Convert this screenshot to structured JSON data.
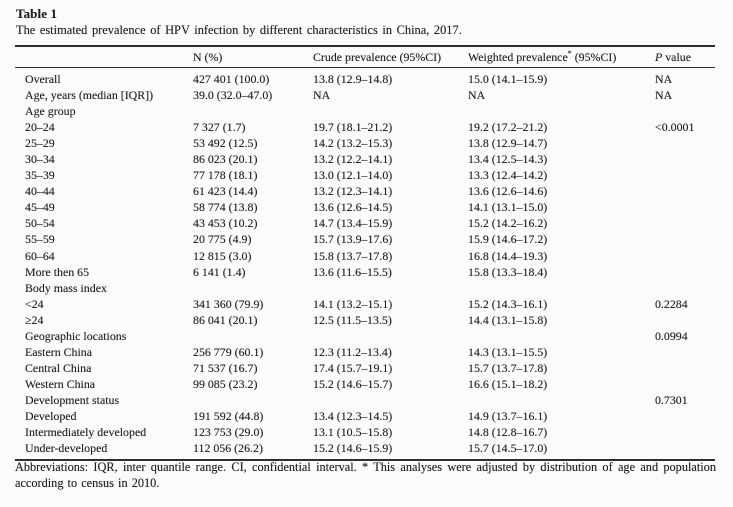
{
  "title": "Table 1",
  "caption": "The estimated prevalence of HPV infection by different characteristics in China, 2017.",
  "table": {
    "headers": [
      {
        "text": ""
      },
      {
        "text": "N (%)"
      },
      {
        "text": "Crude prevalence (95%CI)"
      },
      {
        "text": "Weighted prevalence",
        "sup": "*",
        "after": " (95%CI)"
      },
      {
        "italic": "P",
        "text": " value"
      }
    ],
    "rows": [
      [
        "Overall",
        "427 401 (100.0)",
        "13.8 (12.9–14.8)",
        "15.0 (14.1–15.9)",
        "NA"
      ],
      [
        "Age, years (median [IQR])",
        "39.0 (32.0–47.0)",
        "NA",
        "NA",
        "NA"
      ],
      [
        "Age group",
        "",
        "",
        "",
        ""
      ],
      [
        "20–24",
        "7 327 (1.7)",
        "19.7 (18.1–21.2)",
        "19.2 (17.2–21.2)",
        "<0.0001"
      ],
      [
        "25–29",
        "53 492 (12.5)",
        "14.2 (13.2–15.3)",
        "13.8 (12.9–14.7)",
        ""
      ],
      [
        "30–34",
        "86 023 (20.1)",
        "13.2 (12.2–14.1)",
        "13.4 (12.5–14.3)",
        ""
      ],
      [
        "35–39",
        "77 178 (18.1)",
        "13.0 (12.1–14.0)",
        "13.3 (12.4–14.2)",
        ""
      ],
      [
        "40–44",
        "61 423 (14.4)",
        "13.2 (12.3–14.1)",
        "13.6 (12.6–14.6)",
        ""
      ],
      [
        "45–49",
        "58 774 (13.8)",
        "13.6 (12.6–14.5)",
        "14.1 (13.1–15.0)",
        ""
      ],
      [
        "50–54",
        "43 453 (10.2)",
        "14.7 (13.4–15.9)",
        "15.2 (14.2–16.2)",
        ""
      ],
      [
        "55–59",
        "20 775 (4.9)",
        "15.7 (13.9–17.6)",
        "15.9 (14.6–17.2)",
        ""
      ],
      [
        "60–64",
        "12 815 (3.0)",
        "15.8 (13.7–17.8)",
        "16.8 (14.4–19.3)",
        ""
      ],
      [
        "More then 65",
        "6 141 (1.4)",
        "13.6 (11.6–15.5)",
        "15.8 (13.3–18.4)",
        ""
      ],
      [
        "Body mass index",
        "",
        "",
        "",
        ""
      ],
      [
        "<24",
        "341 360 (79.9)",
        "14.1 (13.2–15.1)",
        "15.2 (14.3–16.1)",
        "0.2284"
      ],
      [
        "≥24",
        "86 041 (20.1)",
        "12.5 (11.5–13.5)",
        "14.4 (13.1–15.8)",
        ""
      ],
      [
        "Geographic locations",
        "",
        "",
        "",
        "0.0994"
      ],
      [
        "Eastern China",
        "256 779 (60.1)",
        "12.3 (11.2–13.4)",
        "14.3 (13.1–15.5)",
        ""
      ],
      [
        "Central China",
        "71 537 (16.7)",
        "17.4 (15.7–19.1)",
        "15.7 (13.7–17.8)",
        ""
      ],
      [
        "Western China",
        "99 085 (23.2)",
        "15.2 (14.6–15.7)",
        "16.6 (15.1–18.2)",
        ""
      ],
      [
        "Development status",
        "",
        "",
        "",
        "0.7301"
      ],
      [
        "Developed",
        "191 592 (44.8)",
        "13.4 (12.3–14.5)",
        "14.9 (13.7–16.1)",
        ""
      ],
      [
        "Intermediately developed",
        "123 753 (29.0)",
        "13.1 (10.5–15.8)",
        "14.8 (12.8–16.7)",
        ""
      ],
      [
        "Under-developed",
        "112 056 (26.2)",
        "15.2 (14.6–15.9)",
        "15.7 (14.5–17.0)",
        ""
      ]
    ]
  },
  "footnote": "Abbreviations: IQR, inter quantile range. CI, confidential interval. * This analyses were adjusted by distribution of age and population according to census in 2010."
}
